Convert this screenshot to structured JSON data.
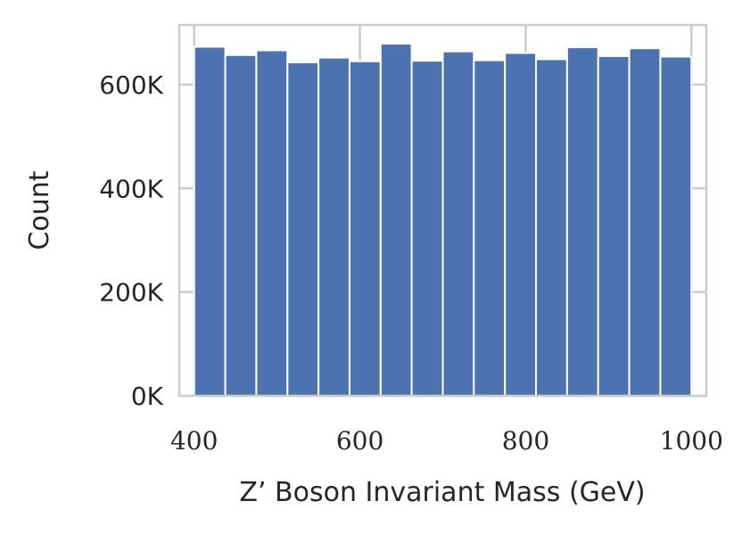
{
  "chart_data": {
    "type": "bar",
    "xlabel": "Z’ Boson Invariant Mass (GeV)",
    "ylabel": "Count",
    "x_bin_edges": [
      400,
      437.5,
      475,
      512.5,
      550,
      587.5,
      625,
      662.5,
      700,
      737.5,
      775,
      812.5,
      850,
      887.5,
      925,
      962.5,
      1000
    ],
    "values": [
      673000,
      657000,
      666000,
      643000,
      652000,
      645000,
      679000,
      646000,
      664000,
      647000,
      661000,
      649000,
      672000,
      655000,
      670000,
      654000
    ],
    "xlim": [
      382,
      1018
    ],
    "ylim": [
      0,
      715000
    ],
    "x_ticks": [
      400,
      600,
      800,
      1000
    ],
    "x_tick_labels": [
      "400",
      "600",
      "800",
      "1000"
    ],
    "y_ticks": [
      0,
      200000,
      400000,
      600000
    ],
    "y_tick_labels": [
      "0K",
      "200K",
      "400K",
      "600K"
    ],
    "grid": true,
    "bar_color": "#4c72b0",
    "grid_color": "#cccccc",
    "frame_color": "#cccccc"
  }
}
